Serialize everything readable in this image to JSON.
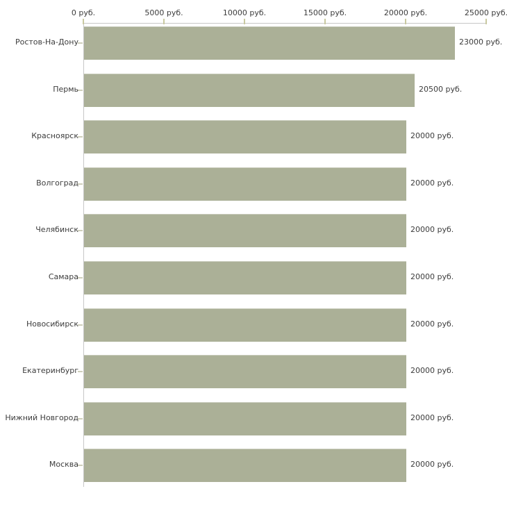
{
  "chart_data": {
    "type": "bar",
    "orientation": "horizontal",
    "title": "",
    "categories": [
      "Ростов-На-Дону",
      "Пермь",
      "Красноярск",
      "Волгоград",
      "Челябинск",
      "Самара",
      "Новосибирск",
      "Екатеринбург",
      "Нижний Новгород",
      "Москва"
    ],
    "values": [
      23000,
      20500,
      20000,
      20000,
      20000,
      20000,
      20000,
      20000,
      20000,
      20000
    ],
    "value_labels": [
      "23000 руб.",
      "20500 руб.",
      "20000 руб.",
      "20000 руб.",
      "20000 руб.",
      "20000 руб.",
      "20000 руб.",
      "20000 руб.",
      "20000 руб.",
      "20000 руб."
    ],
    "x_axis": {
      "position": "top",
      "ticks": [
        0,
        5000,
        10000,
        15000,
        20000,
        25000
      ],
      "tick_labels": [
        "0 руб.",
        "5000 руб.",
        "10000 руб.",
        "15000 руб.",
        "20000 руб.",
        "25000 руб."
      ],
      "xlim": [
        0,
        25000
      ]
    },
    "xlabel": "",
    "ylabel": "",
    "grid": false,
    "legend": false,
    "colors": {
      "bar_fill": "#abb097",
      "axis_line": "#c6c6c6",
      "x_tick_mark": "#c9c9a0",
      "category_tick_mark": "#cfcfbc",
      "text": "#3c3c3c",
      "background": "#ffffff"
    }
  }
}
